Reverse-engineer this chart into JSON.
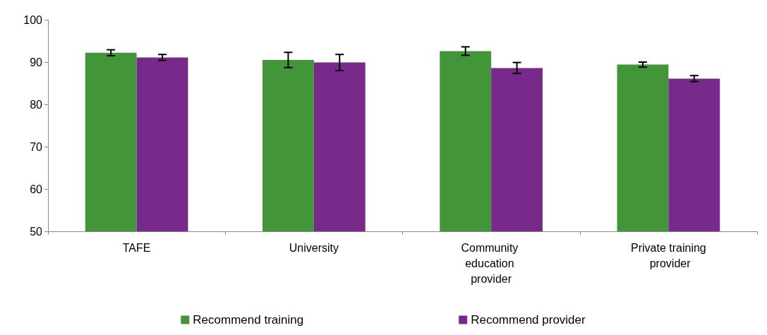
{
  "chart_data": {
    "type": "bar",
    "categories": [
      "TAFE",
      "University",
      "Community education provider",
      "Private training provider"
    ],
    "series": [
      {
        "name": "Recommend training",
        "color": "#43953a",
        "values": [
          92.2,
          90.5,
          92.6,
          89.4
        ],
        "errors": [
          0.7,
          1.8,
          1.0,
          0.6
        ]
      },
      {
        "name": "Recommend provider",
        "color": "#782a8a",
        "values": [
          91.1,
          89.9,
          88.6,
          86.1
        ],
        "errors": [
          0.7,
          1.9,
          1.3,
          0.7
        ]
      }
    ],
    "ylim": [
      50,
      100
    ],
    "yticks": [
      50,
      60,
      70,
      80,
      90,
      100
    ],
    "grid": false,
    "legend": "bottom"
  }
}
